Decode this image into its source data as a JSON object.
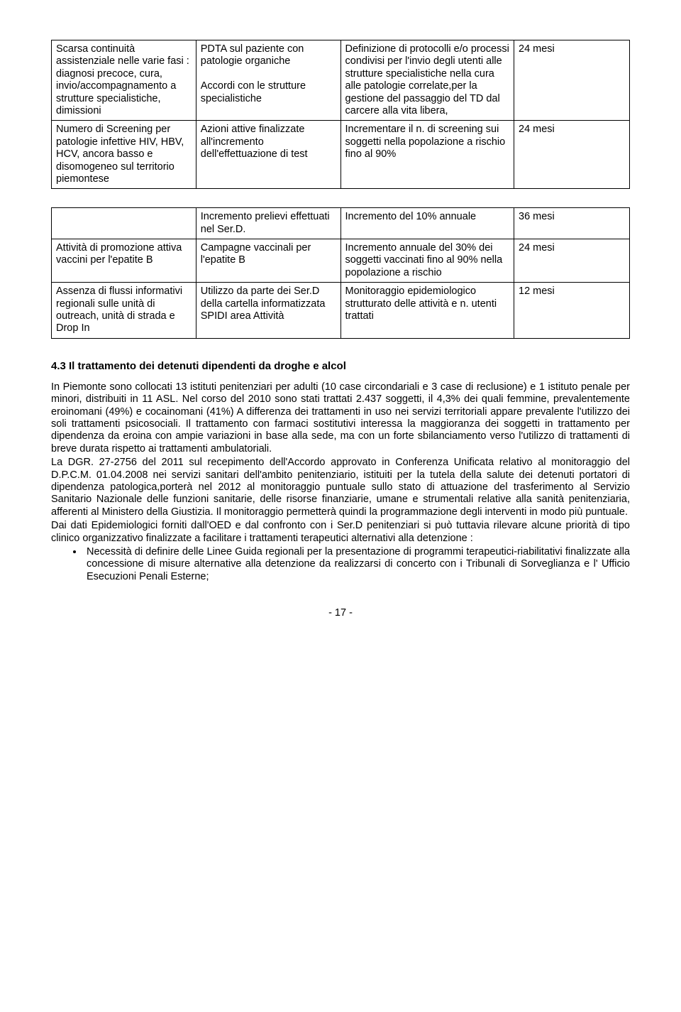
{
  "table1": {
    "rows": [
      {
        "c1": "Scarsa continuità assistenziale nelle varie fasi : diagnosi precoce, cura, invio/accompagnamento a strutture specialistiche, dimissioni",
        "c2": "PDTA sul paziente con patologie organiche\n\nAccordi con le strutture specialistiche",
        "c3": "Definizione di protocolli e/o processi condivisi  per l'invio degli utenti alle strutture specialistiche nella cura alle patologie correlate,per la gestione del passaggio del TD dal carcere alla vita libera,",
        "c4": "24 mesi"
      },
      {
        "c1": "Numero di Screening per patologie infettive HIV, HBV, HCV, ancora basso e disomogeneo sul territorio piemontese",
        "c2": "Azioni attive finalizzate all'incremento dell'effettuazione di test",
        "c3": "Incrementare il n. di screening sui soggetti nella popolazione a rischio fino al 90%",
        "c4": "24 mesi"
      }
    ]
  },
  "table2": {
    "rows": [
      {
        "c1": "",
        "c2": "Incremento prelievi effettuati nel Ser.D.",
        "c3": "Incremento del 10% annuale",
        "c4": "36 mesi"
      },
      {
        "c1": "Attività di promozione attiva vaccini per l'epatite B",
        "c2": "Campagne vaccinali per l'epatite B",
        "c3": "Incremento annuale del 30% dei soggetti vaccinati fino al 90% nella popolazione a rischio",
        "c4": "24 mesi"
      },
      {
        "c1": "Assenza di flussi informativi regionali sulle unità di outreach, unità di strada e Drop In",
        "c2": "Utilizzo da parte dei Ser.D della cartella informatizzata SPIDI area Attività",
        "c3": "Monitoraggio epidemiologico strutturato  delle attività  e n. utenti trattati",
        "c4": "12 mesi"
      }
    ]
  },
  "heading": "4.3 Il trattamento dei detenuti dipendenti da droghe e alcol",
  "para1": "In Piemonte sono collocati 13 istituti penitenziari per adulti (10 case circondariali e 3 case di reclusione) e 1 istituto penale per minori, distribuiti in 11 ASL. Nel corso del 2010 sono stati trattati 2.437 soggetti, il 4,3% dei quali femmine, prevalentemente eroinomani (49%) e cocainomani (41%) A differenza dei trattamenti in uso nei servizi territoriali appare prevalente l'utilizzo dei soli trattamenti psicosociali. Il trattamento con farmaci sostitutivi interessa la maggioranza dei soggetti in trattamento per dipendenza da eroina con ampie variazioni in base alla sede, ma con un forte sbilanciamento verso l'utilizzo di trattamenti di breve durata rispetto ai trattamenti ambulatoriali.",
  "para2": "La DGR. 27-2756 del 2011 sul recepimento  dell'Accordo approvato in Conferenza Unificata relativo al monitoraggio del D.P.C.M.  01.04.2008 nei servizi sanitari dell'ambito penitenziario, istituiti per la tutela della salute dei detenuti portatori di dipendenza patologica,porterà nel 2012 al monitoraggio puntuale sullo stato di attuazione del trasferimento  al Servizio Sanitario Nazionale delle  funzioni sanitarie, delle risorse finanziarie, umane e strumentali relative alla sanità penitenziaria, afferenti al Ministero della Giustizia. Il monitoraggio permetterà quindi la programmazione degli interventi in modo più puntuale.",
  "para3": "Dai dati Epidemiologici forniti dall'OED e dal confronto con i Ser.D penitenziari si può tuttavia rilevare alcune priorità di tipo clinico organizzativo finalizzate a facilitare i trattamenti terapeutici alternativi alla detenzione :",
  "bullet1": "Necessità di definire delle Linee Guida regionali per la presentazione di programmi terapeutici-riabilitativi finalizzate alla concessione di misure alternative alla detenzione da realizzarsi di concerto con i Tribunali di Sorveglianza e l' Ufficio Esecuzioni Penali Esterne;",
  "pagenum": "- 17 -"
}
